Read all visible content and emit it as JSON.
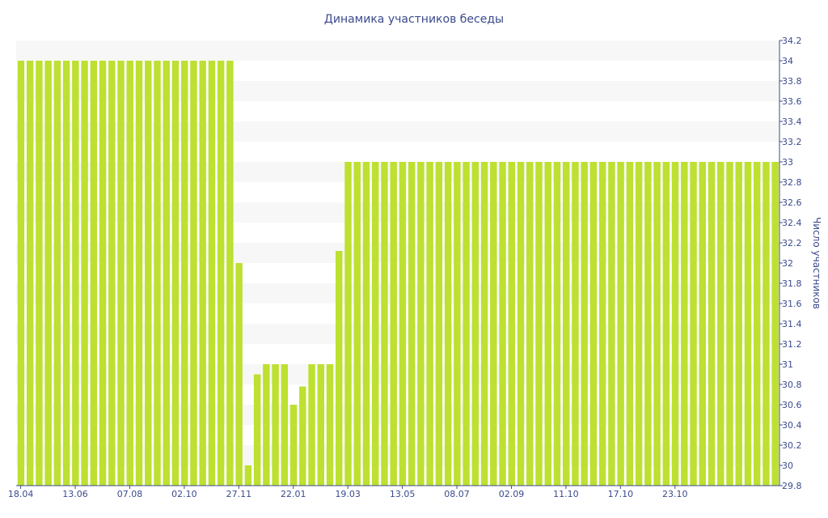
{
  "chart_data": {
    "type": "bar",
    "title": "Динамика участников беседы",
    "ylabel": "Число участников",
    "xlabel": "",
    "ylim": [
      29.8,
      34.2
    ],
    "y_ticks": [
      "29.8",
      "30",
      "30.2",
      "30.4",
      "30.6",
      "30.8",
      "31",
      "31.2",
      "31.4",
      "31.6",
      "31.8",
      "32",
      "32.2",
      "32.4",
      "32.6",
      "32.8",
      "33",
      "33.2",
      "33.4",
      "33.6",
      "33.8",
      "34",
      "34.2"
    ],
    "x_tick_labels": [
      {
        "index": 0,
        "label": "18.04"
      },
      {
        "index": 6,
        "label": "13.06"
      },
      {
        "index": 12,
        "label": "07.08"
      },
      {
        "index": 18,
        "label": "02.10"
      },
      {
        "index": 24,
        "label": "27.11"
      },
      {
        "index": 30,
        "label": "22.01"
      },
      {
        "index": 36,
        "label": "19.03"
      },
      {
        "index": 42,
        "label": "13.05"
      },
      {
        "index": 48,
        "label": "08.07"
      },
      {
        "index": 54,
        "label": "02.09"
      },
      {
        "index": 60,
        "label": "11.10"
      },
      {
        "index": 66,
        "label": "17.10"
      },
      {
        "index": 72,
        "label": "23.10"
      }
    ],
    "values": [
      34,
      34,
      34,
      34,
      34,
      34,
      34,
      34,
      34,
      34,
      34,
      34,
      34,
      34,
      34,
      34,
      34,
      34,
      34,
      34,
      34,
      34,
      34,
      34,
      32,
      30,
      30.9,
      31,
      31,
      31,
      30.6,
      30.78,
      31,
      31,
      31,
      32.12,
      33,
      33,
      33,
      33,
      33,
      33,
      33,
      33,
      33,
      33,
      33,
      33,
      33,
      33,
      33,
      33,
      33,
      33,
      33,
      33,
      33,
      33,
      33,
      33,
      33,
      33,
      33,
      33,
      33,
      33,
      33,
      33,
      33,
      33,
      33,
      33,
      33,
      33,
      33,
      33,
      33,
      33,
      33,
      33,
      33,
      33,
      33,
      33
    ],
    "bar_color": "#bde031",
    "band_color": "#f7f7f7",
    "axis_color": "#3b4a8c",
    "grid": "alternating horizontal bands",
    "y_axis_side": "right"
  }
}
